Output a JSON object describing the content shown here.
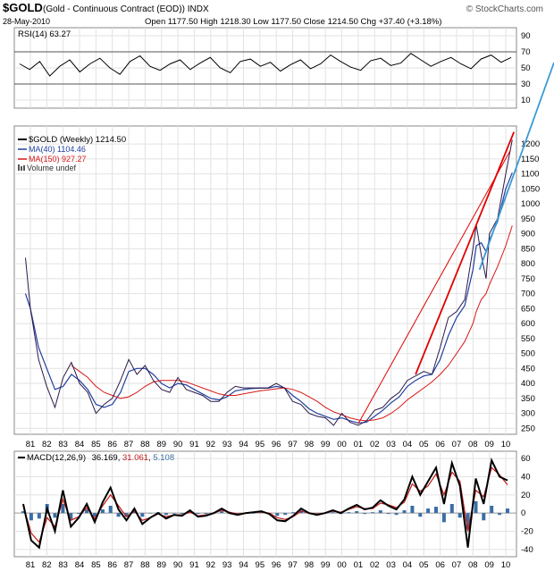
{
  "header": {
    "symbol": "$GOLD",
    "desc": "(Gold - Continuous Contract (EOD))  INDX",
    "watermark": "© StockCharts.com",
    "date": "28-May-2010",
    "ohlc": "Open 1177.50   High 1218.30   Low 1177.50   Close 1214.50   Chg +37.40 (+3.18%)"
  },
  "colors": {
    "price": "#2b1a4a",
    "ma40": "#1f3fa0",
    "ma150": "#d81818",
    "trend_red": "#e00000",
    "trend_blue": "#3b9ad6",
    "macd": "#000000",
    "signal": "#c01818",
    "hist": "#3a6ea5",
    "rsi": "#000000"
  },
  "chart_data": [
    {
      "type": "line",
      "panel": "rsi",
      "title": "RSI(14) 63.27",
      "yticks": [
        90,
        70,
        50,
        30,
        10
      ],
      "ylim": [
        0,
        100
      ],
      "guide_lines": [
        30,
        70
      ],
      "series": [
        {
          "name": "RSI(14)",
          "values": [
            55,
            48,
            58,
            40,
            52,
            60,
            45,
            55,
            62,
            50,
            42,
            58,
            65,
            52,
            47,
            55,
            60,
            48,
            56,
            63,
            50,
            44,
            58,
            61,
            52,
            57,
            46,
            54,
            60,
            49,
            55,
            66,
            58,
            51,
            47,
            59,
            62,
            53,
            56,
            68,
            60,
            52,
            58,
            63,
            55,
            49,
            61,
            66,
            57,
            63
          ]
        }
      ]
    },
    {
      "type": "line",
      "panel": "price",
      "title": "$GOLD (Weekly) 1214.50",
      "legend": [
        "$GOLD (Weekly) 1214.50",
        "MA(40) 1104.46",
        "MA(150) 927.27",
        "Volume undef"
      ],
      "x_years": [
        80.7,
        81,
        81.5,
        82,
        82.5,
        83,
        83.5,
        84,
        84.5,
        85,
        85.5,
        86,
        86.5,
        87,
        87.5,
        88,
        88.5,
        89,
        89.5,
        90,
        90.5,
        91,
        91.5,
        92,
        92.5,
        93,
        93.5,
        94,
        94.5,
        95,
        95.5,
        96,
        96.5,
        97,
        97.5,
        98,
        98.5,
        99,
        99.5,
        100,
        100.5,
        101,
        101.5,
        102,
        102.5,
        103,
        103.5,
        104,
        104.5,
        105,
        105.5,
        106,
        106.5,
        107,
        107.5,
        108,
        108.2,
        108.5,
        108.8,
        109,
        109.5,
        110,
        110.4
      ],
      "xticks": [
        "81",
        "82",
        "83",
        "84",
        "85",
        "86",
        "87",
        "88",
        "89",
        "90",
        "91",
        "92",
        "93",
        "94",
        "95",
        "96",
        "97",
        "98",
        "99",
        "00",
        "01",
        "02",
        "03",
        "04",
        "05",
        "06",
        "07",
        "08",
        "09",
        "10"
      ],
      "yticks": [
        250,
        300,
        350,
        400,
        450,
        500,
        550,
        600,
        650,
        700,
        750,
        800,
        850,
        900,
        950,
        1000,
        1050,
        1100,
        1150,
        1200
      ],
      "ylim": [
        230,
        1260
      ],
      "series": [
        {
          "name": "$GOLD (Weekly)",
          "values": [
            820,
            650,
            480,
            390,
            320,
            420,
            470,
            400,
            370,
            300,
            330,
            350,
            410,
            480,
            430,
            460,
            410,
            380,
            370,
            420,
            380,
            370,
            360,
            340,
            340,
            370,
            390,
            385,
            385,
            385,
            385,
            400,
            385,
            340,
            330,
            300,
            290,
            285,
            260,
            300,
            270,
            260,
            275,
            310,
            320,
            350,
            370,
            410,
            425,
            440,
            430,
            520,
            620,
            640,
            680,
            850,
            930,
            830,
            750,
            900,
            950,
            1100,
            1214
          ]
        },
        {
          "name": "MA(40)",
          "values": [
            700,
            650,
            520,
            450,
            380,
            390,
            430,
            410,
            380,
            330,
            320,
            330,
            370,
            440,
            450,
            450,
            430,
            400,
            385,
            400,
            395,
            380,
            365,
            350,
            345,
            355,
            375,
            380,
            383,
            384,
            384,
            390,
            385,
            360,
            340,
            315,
            300,
            290,
            280,
            285,
            275,
            268,
            270,
            290,
            310,
            335,
            355,
            390,
            410,
            425,
            430,
            480,
            560,
            620,
            660,
            780,
            860,
            870,
            840,
            880,
            940,
            1050,
            1104
          ]
        },
        {
          "name": "MA(150)",
          "values": [
            null,
            null,
            null,
            null,
            null,
            null,
            460,
            440,
            420,
            390,
            370,
            360,
            350,
            355,
            370,
            390,
            405,
            410,
            410,
            410,
            405,
            395,
            385,
            375,
            365,
            360,
            360,
            365,
            370,
            375,
            378,
            382,
            385,
            380,
            370,
            355,
            340,
            320,
            305,
            295,
            285,
            278,
            275,
            278,
            285,
            300,
            320,
            345,
            365,
            385,
            405,
            430,
            460,
            500,
            540,
            600,
            640,
            680,
            700,
            730,
            790,
            860,
            927
          ]
        }
      ]
    },
    {
      "type": "line",
      "panel": "macd",
      "title": "MACD(12,26,9) 36.169, 31.061, 5.108",
      "title_parts": {
        "label": "MACD(12,26,9)",
        "macd": "36.169",
        "signal": "31.061",
        "hist": "5.108"
      },
      "xticks": [
        "81",
        "82",
        "83",
        "84",
        "85",
        "86",
        "87",
        "88",
        "89",
        "90",
        "91",
        "92",
        "93",
        "94",
        "95",
        "96",
        "97",
        "98",
        "99",
        "00",
        "01",
        "02",
        "03",
        "04",
        "05",
        "06",
        "07",
        "08",
        "09",
        "10"
      ],
      "yticks": [
        60,
        40,
        20,
        0,
        -20,
        -40
      ],
      "ylim": [
        -48,
        68
      ],
      "series": [
        {
          "name": "MACD",
          "values": [
            10,
            -30,
            -38,
            5,
            -20,
            25,
            -15,
            -5,
            10,
            -10,
            12,
            28,
            4,
            -8,
            5,
            -12,
            -5,
            0,
            -6,
            -2,
            -3,
            3,
            -4,
            -3,
            0,
            5,
            0,
            -2,
            0,
            1,
            2,
            -1,
            -8,
            -9,
            -3,
            5,
            0,
            -2,
            0,
            3,
            0,
            5,
            9,
            4,
            6,
            14,
            8,
            4,
            15,
            40,
            20,
            35,
            50,
            10,
            55,
            30,
            -38,
            38,
            10,
            58,
            40,
            36
          ]
        },
        {
          "name": "Signal",
          "values": [
            8,
            -22,
            -32,
            -5,
            -15,
            15,
            -8,
            -4,
            6,
            -6,
            8,
            20,
            8,
            -4,
            2,
            -8,
            -5,
            -1,
            -4,
            -2,
            -2,
            1,
            -3,
            -2,
            0,
            3,
            1,
            -1,
            0,
            1,
            1,
            0,
            -5,
            -7,
            -4,
            2,
            0,
            -1,
            0,
            2,
            1,
            4,
            7,
            5,
            5,
            11,
            9,
            6,
            12,
            32,
            24,
            30,
            43,
            20,
            45,
            35,
            -20,
            25,
            18,
            50,
            42,
            31
          ]
        }
      ]
    }
  ]
}
